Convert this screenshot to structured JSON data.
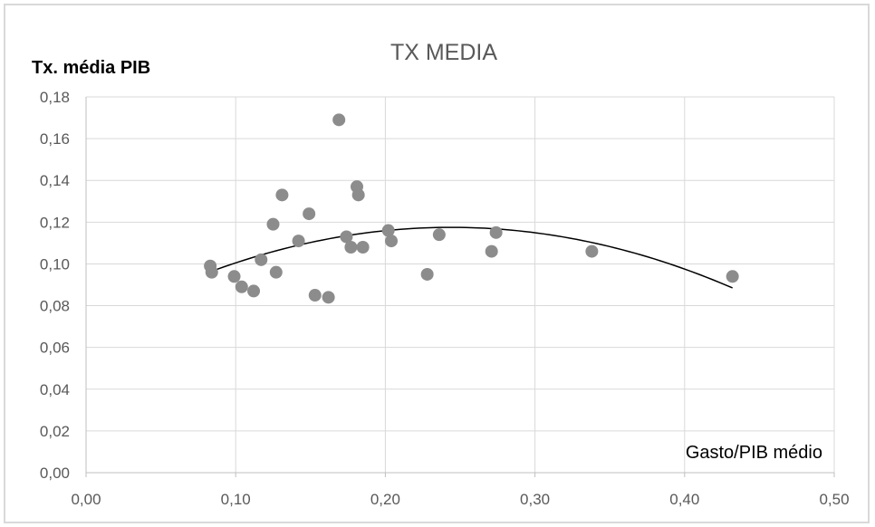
{
  "chart_data": {
    "type": "scatter",
    "title": "TX MEDIA",
    "xlabel": "Gasto/PIB médio",
    "ylabel": "Tx. média PIB",
    "xlim": [
      0,
      0.5
    ],
    "ylim": [
      0,
      0.18
    ],
    "xticks": [
      "0,00",
      "0,10",
      "0,20",
      "0,30",
      "0,40",
      "0,50"
    ],
    "yticks": [
      "0,00",
      "0,02",
      "0,04",
      "0,06",
      "0,08",
      "0,10",
      "0,12",
      "0,14",
      "0,16",
      "0,18"
    ],
    "grid": true,
    "legend": "none",
    "point_color": "#8c8c8c",
    "trendline": {
      "type": "polynomial",
      "color": "#000000",
      "x_range": [
        0.084,
        0.432
      ],
      "points": [
        [
          0.084,
          0.0965
        ],
        [
          0.24,
          0.1175
        ],
        [
          0.432,
          0.0885
        ]
      ]
    },
    "points": [
      {
        "x": 0.083,
        "y": 0.099
      },
      {
        "x": 0.084,
        "y": 0.096
      },
      {
        "x": 0.099,
        "y": 0.094
      },
      {
        "x": 0.104,
        "y": 0.089
      },
      {
        "x": 0.112,
        "y": 0.087
      },
      {
        "x": 0.117,
        "y": 0.102
      },
      {
        "x": 0.125,
        "y": 0.119
      },
      {
        "x": 0.127,
        "y": 0.096
      },
      {
        "x": 0.131,
        "y": 0.133
      },
      {
        "x": 0.142,
        "y": 0.111
      },
      {
        "x": 0.149,
        "y": 0.124
      },
      {
        "x": 0.153,
        "y": 0.085
      },
      {
        "x": 0.162,
        "y": 0.084
      },
      {
        "x": 0.169,
        "y": 0.169
      },
      {
        "x": 0.174,
        "y": 0.113
      },
      {
        "x": 0.177,
        "y": 0.108
      },
      {
        "x": 0.181,
        "y": 0.137
      },
      {
        "x": 0.182,
        "y": 0.133
      },
      {
        "x": 0.185,
        "y": 0.108
      },
      {
        "x": 0.202,
        "y": 0.116
      },
      {
        "x": 0.204,
        "y": 0.111
      },
      {
        "x": 0.228,
        "y": 0.095
      },
      {
        "x": 0.236,
        "y": 0.114
      },
      {
        "x": 0.271,
        "y": 0.106
      },
      {
        "x": 0.274,
        "y": 0.115
      },
      {
        "x": 0.338,
        "y": 0.106
      },
      {
        "x": 0.432,
        "y": 0.094
      }
    ]
  }
}
